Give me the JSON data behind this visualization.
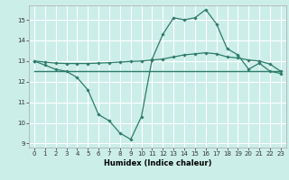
{
  "title": "",
  "xlabel": "Humidex (Indice chaleur)",
  "background_color": "#cceee8",
  "grid_color": "#ffffff",
  "line_color": "#2d7b6b",
  "xlim": [
    -0.5,
    23.5
  ],
  "ylim": [
    8.8,
    15.7
  ],
  "yticks": [
    9,
    10,
    11,
    12,
    13,
    14,
    15
  ],
  "xticks": [
    0,
    1,
    2,
    3,
    4,
    5,
    6,
    7,
    8,
    9,
    10,
    11,
    12,
    13,
    14,
    15,
    16,
    17,
    18,
    19,
    20,
    21,
    22,
    23
  ],
  "line1_x": [
    0,
    1,
    2,
    3,
    4,
    5,
    6,
    7,
    8,
    9,
    10,
    11,
    12,
    13,
    14,
    15,
    16,
    17,
    18,
    19,
    20,
    21,
    22,
    23
  ],
  "line1_y": [
    13.0,
    12.8,
    12.6,
    12.5,
    12.2,
    11.6,
    10.4,
    10.1,
    9.5,
    9.2,
    10.3,
    13.1,
    14.3,
    15.1,
    15.0,
    15.1,
    15.5,
    14.8,
    13.6,
    13.3,
    12.6,
    12.9,
    12.5,
    12.4
  ],
  "line2_x": [
    0,
    23
  ],
  "line2_y": [
    12.5,
    12.5
  ],
  "line3_x": [
    0,
    1,
    2,
    3,
    4,
    5,
    6,
    7,
    8,
    9,
    10,
    11,
    12,
    13,
    14,
    15,
    16,
    17,
    18,
    19,
    20,
    21,
    22,
    23
  ],
  "line3_y": [
    13.0,
    12.95,
    12.9,
    12.88,
    12.88,
    12.88,
    12.9,
    12.92,
    12.95,
    12.98,
    13.0,
    13.05,
    13.1,
    13.2,
    13.3,
    13.35,
    13.4,
    13.35,
    13.2,
    13.15,
    13.05,
    13.0,
    12.85,
    12.5
  ]
}
